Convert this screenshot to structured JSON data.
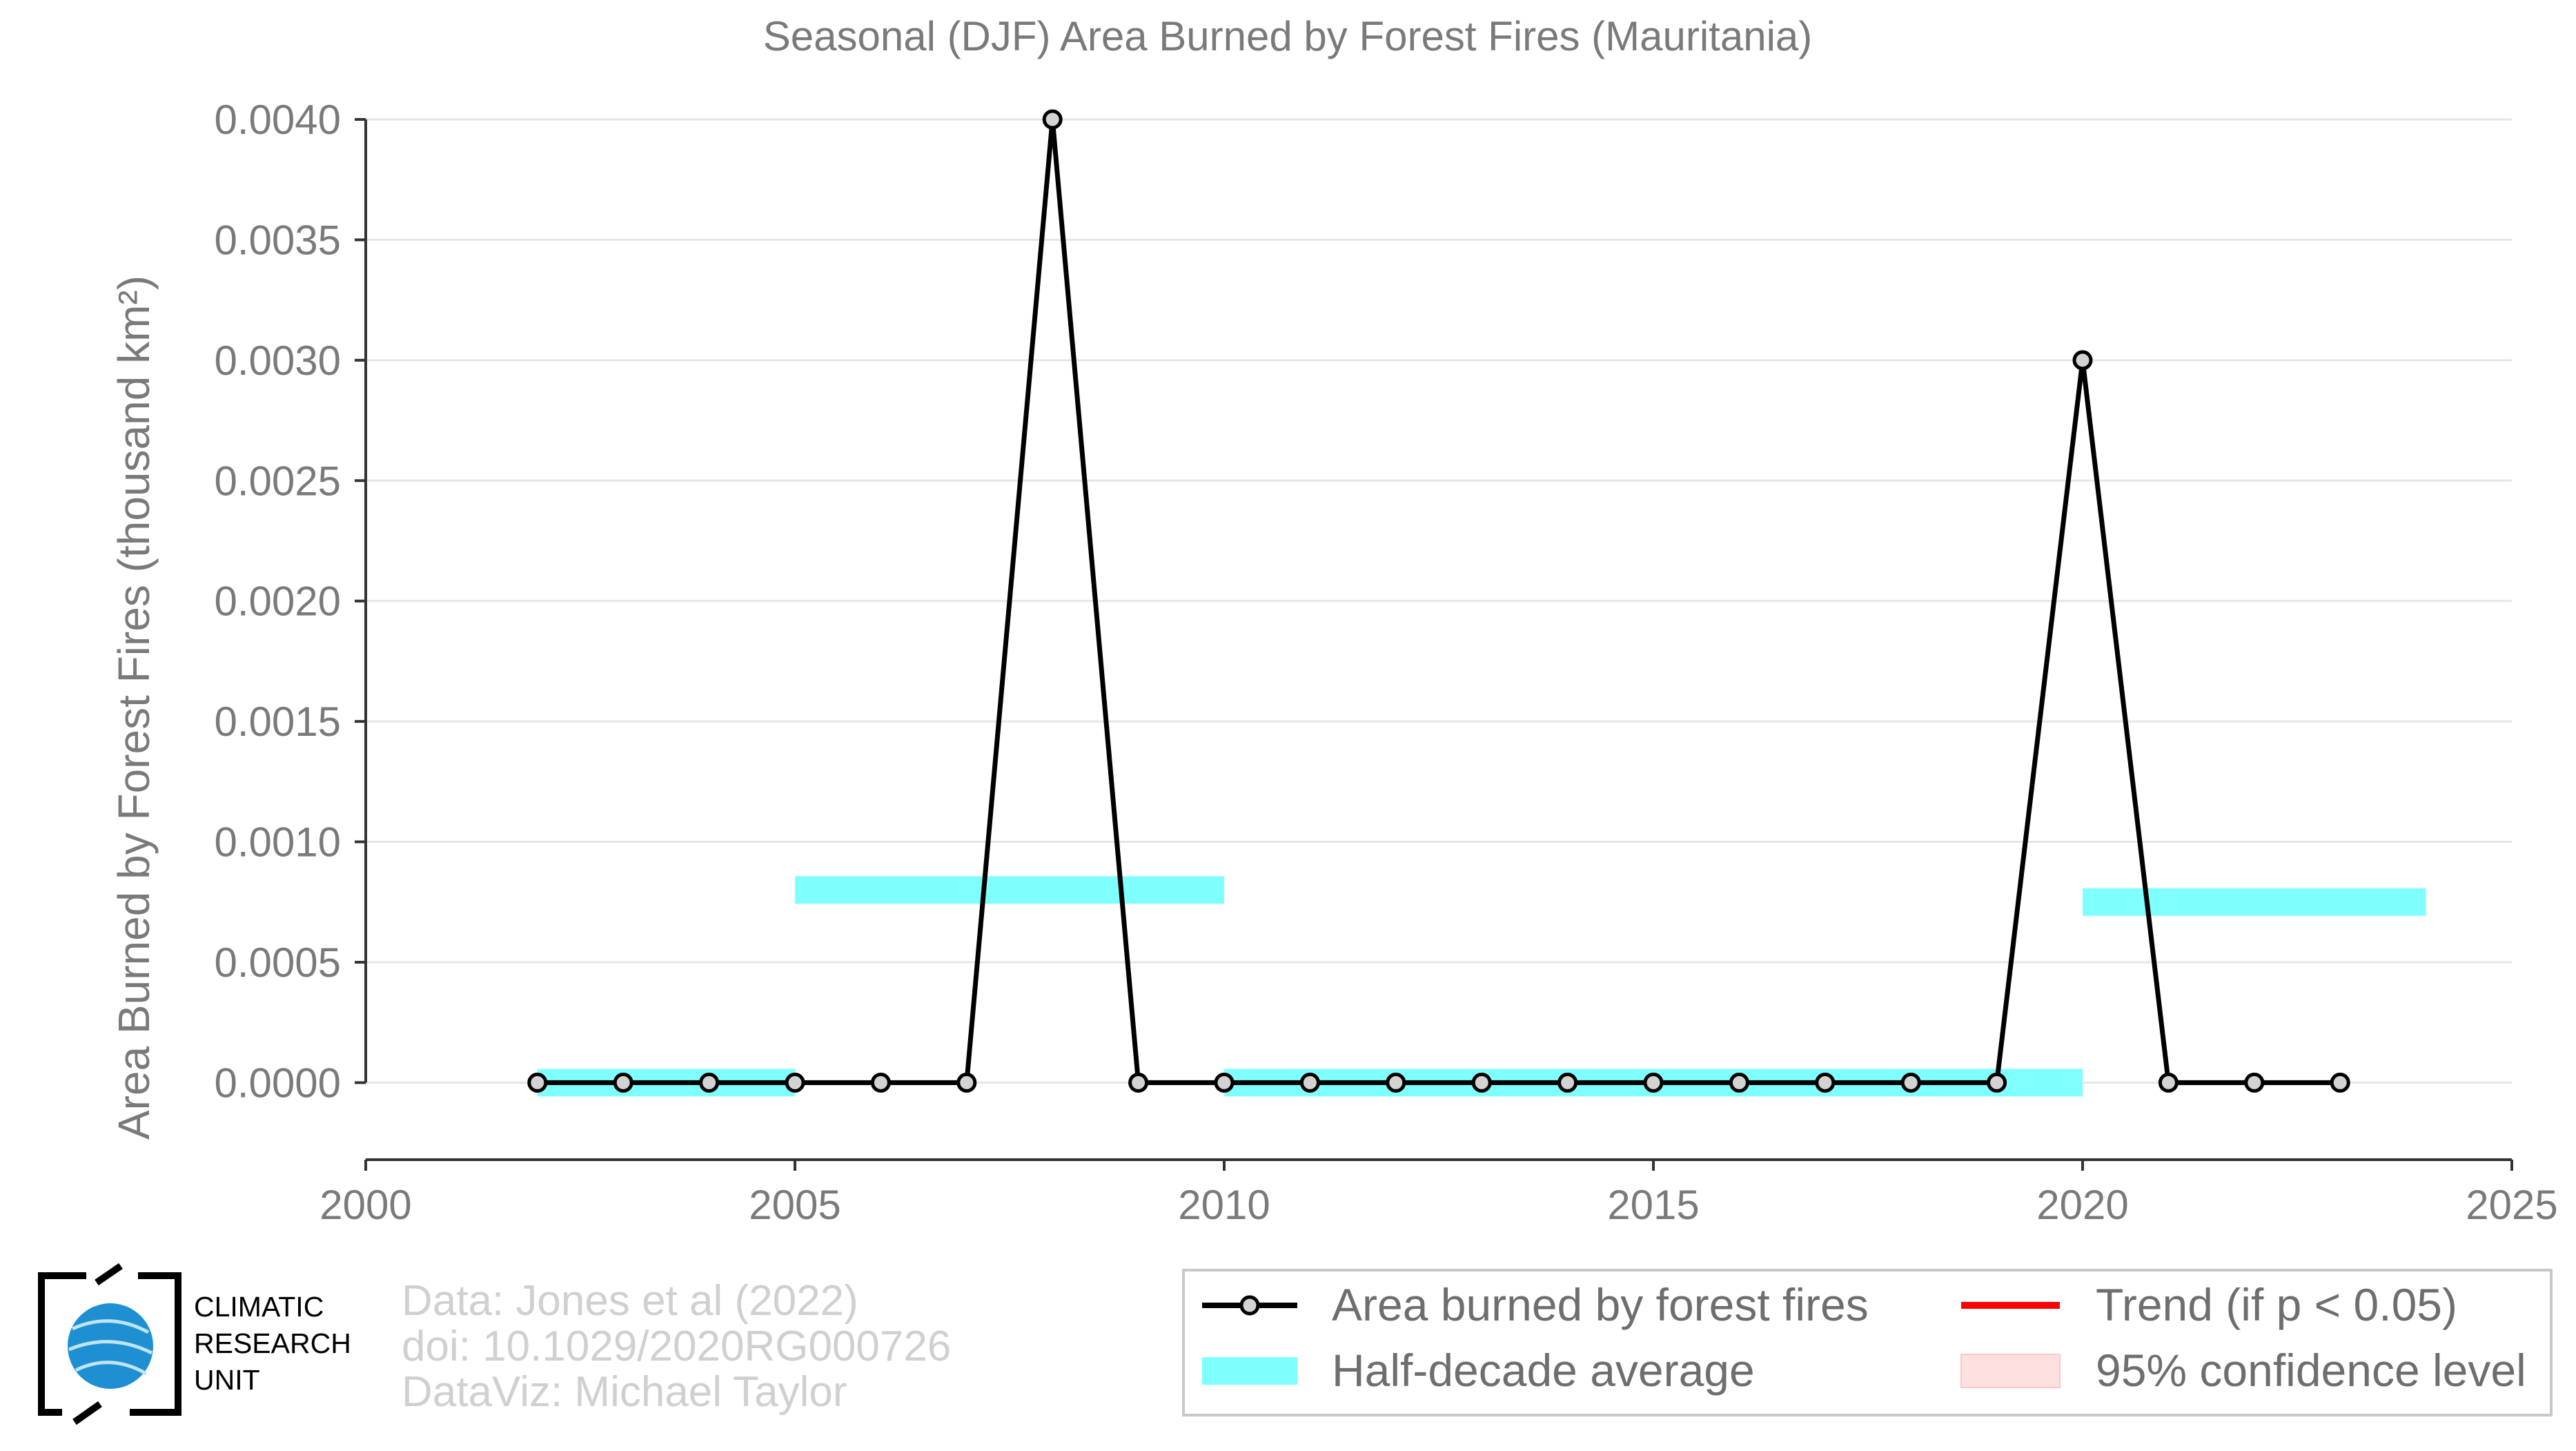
{
  "chart_data": {
    "type": "line",
    "title": "Seasonal (DJF) Area Burned by Forest Fires (Mauritania)",
    "ylabel": "Area Burned by Forest Fires (thousand km²)",
    "xlabel": "",
    "xlim": [
      2000,
      2025
    ],
    "ylim": [
      -0.00032,
      0.004
    ],
    "x_ticks": [
      2000,
      2005,
      2010,
      2015,
      2020,
      2025
    ],
    "y_ticks": [
      0.0,
      0.0005,
      0.001,
      0.0015,
      0.002,
      0.0025,
      0.003,
      0.0035,
      0.004
    ],
    "y_tick_labels": [
      "0.0000",
      "0.0005",
      "0.0010",
      "0.0015",
      "0.0020",
      "0.0025",
      "0.0030",
      "0.0035",
      "0.0040"
    ],
    "grid": "horizontal",
    "series": [
      {
        "name": "Area burned by forest fires",
        "color": "#000000",
        "marker_fill": "#d3d3d3",
        "x": [
          2002,
          2003,
          2004,
          2005,
          2006,
          2007,
          2008,
          2009,
          2010,
          2011,
          2012,
          2013,
          2014,
          2015,
          2016,
          2017,
          2018,
          2019,
          2020,
          2021,
          2022,
          2023
        ],
        "y": [
          0,
          0,
          0,
          0,
          0,
          0,
          0.004,
          0,
          0,
          0,
          0,
          0,
          0,
          0,
          0,
          0,
          0,
          0,
          0.003,
          0,
          0,
          0
        ]
      }
    ],
    "half_decade_average": {
      "name": "Half-decade average",
      "color": "#80ffff",
      "segments": [
        {
          "x0": 2002,
          "x1": 2005,
          "y": 0.0
        },
        {
          "x0": 2005,
          "x1": 2010,
          "y": 0.0008
        },
        {
          "x0": 2010,
          "x1": 2020,
          "y": 0.0
        },
        {
          "x0": 2020,
          "x1": 2024,
          "y": 0.00075
        }
      ]
    },
    "legend": {
      "placement": "bottom-right",
      "items": [
        {
          "label": "Area burned by forest fires",
          "kind": "line-marker",
          "color": "#000000"
        },
        {
          "label": "Trend (if p < 0.05)",
          "kind": "line",
          "color": "#ff0000"
        },
        {
          "label": "Half-decade average",
          "kind": "band",
          "color": "#80ffff"
        },
        {
          "label": "95% confidence level",
          "kind": "band",
          "color": "#ffe0e0"
        }
      ]
    }
  },
  "credits": {
    "line1": "Data: Jones et al (2022)",
    "line2": "doi: 10.1029/2020RG000726",
    "line3": "DataViz: Michael Taylor"
  },
  "logo": {
    "line1": "CLIMATIC",
    "line2": "RESEARCH",
    "line3": "UNIT"
  }
}
